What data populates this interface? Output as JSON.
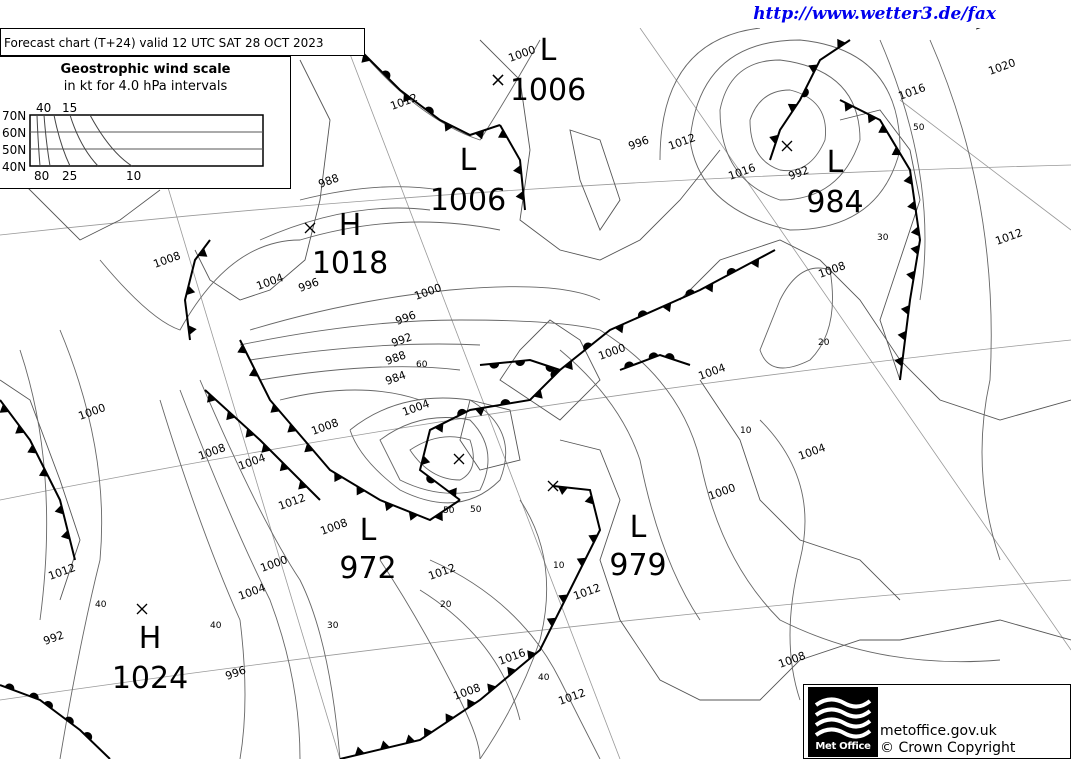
{
  "header": {
    "url": "http://www.wetter3.de/fax"
  },
  "chart": {
    "title": "Forecast chart (T+24) valid 12 UTC SAT 28  OCT 2023"
  },
  "wind_scale": {
    "title": "Geostrophic wind scale",
    "subtitle": "in kt for 4.0 hPa intervals",
    "lat_labels": [
      "70N",
      "60N",
      "50N",
      "40N"
    ],
    "top_labels": [
      "40",
      "15"
    ],
    "bottom_labels": [
      "80",
      "25",
      "10"
    ]
  },
  "pressure_systems": [
    {
      "type": "L",
      "value": "1006"
    },
    {
      "type": "L",
      "value": "1006"
    },
    {
      "type": "H",
      "value": "1018"
    },
    {
      "type": "L",
      "value": "984"
    },
    {
      "type": "L",
      "value": "972"
    },
    {
      "type": "L",
      "value": "979"
    },
    {
      "type": "H",
      "value": "1024"
    }
  ],
  "isobar_labels": [
    "1012",
    "1008",
    "1004",
    "1000",
    "996",
    "992",
    "988",
    "984",
    "1008",
    "1004",
    "1000",
    "996",
    "1012",
    "1016",
    "1020",
    "1020",
    "1016",
    "1012",
    "1008",
    "1004",
    "1000",
    "992",
    "988",
    "996",
    "1000",
    "1004",
    "1008",
    "1012",
    "1008",
    "1004",
    "1000",
    "996",
    "992",
    "1012",
    "1012",
    "1008",
    "1004",
    "1000",
    "1012",
    "1016",
    "1008",
    "1012"
  ],
  "wind_labels": [
    "60",
    "50",
    "50",
    "40",
    "30",
    "20",
    "10",
    "10",
    "20",
    "30",
    "40",
    "40",
    "50"
  ],
  "footer": {
    "logo_text": "Met Office",
    "site": "metoffice.gov.uk",
    "copyright": "© Crown Copyright"
  },
  "colors": {
    "url": "#0000ee",
    "lines": "#000000",
    "isobars": "#777777",
    "coast": "#555555"
  }
}
